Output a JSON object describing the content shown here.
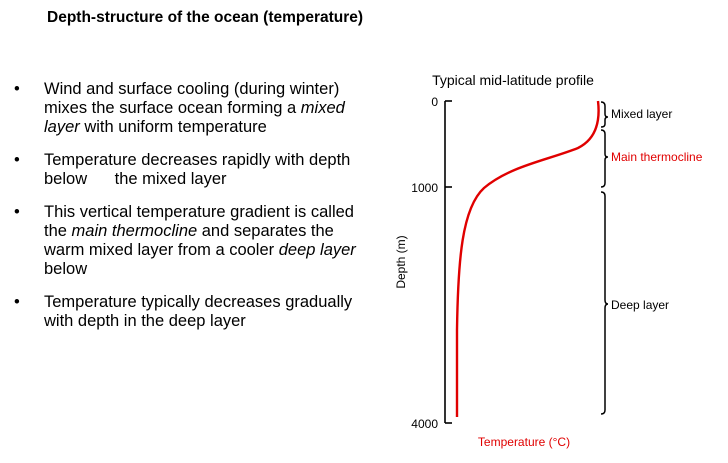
{
  "title": "Depth-structure of the ocean (temperature)",
  "bullet_marker": "•",
  "bullets": [
    {
      "parts": [
        {
          "text": "Wind and surface cooling (during winter) mixes the surface ocean forming a ",
          "italic": false
        },
        {
          "text": "mixed layer",
          "italic": true
        },
        {
          "text": " with uniform temperature",
          "italic": false
        }
      ]
    },
    {
      "parts": [
        {
          "text": "Temperature decreases rapidly with depth below      the mixed layer",
          "italic": false
        }
      ]
    },
    {
      "parts": [
        {
          "text": "This vertical temperature gradient is called the ",
          "italic": false
        },
        {
          "text": "main thermocline",
          "italic": true
        },
        {
          "text": " and separates the warm mixed layer from a cooler ",
          "italic": false
        },
        {
          "text": "deep layer",
          "italic": true
        },
        {
          "text": " below",
          "italic": false
        }
      ]
    },
    {
      "parts": [
        {
          "text": "Temperature typically decreases gradually with depth in the deep layer",
          "italic": false
        }
      ]
    }
  ],
  "diagram": {
    "title": "Typical mid-latitude profile",
    "ylabel": "Depth (m)",
    "xlabel": "Temperature (°C)",
    "yticks": [
      "0",
      "1000",
      "4000"
    ],
    "layers": {
      "mixed": "Mixed layer",
      "thermocline": "Main thermocline",
      "deep": "Deep layer"
    },
    "colors": {
      "curve": "#e00000",
      "thermocline_label": "#e00000",
      "xlabel": "#e00000",
      "axis": "#000000"
    }
  }
}
